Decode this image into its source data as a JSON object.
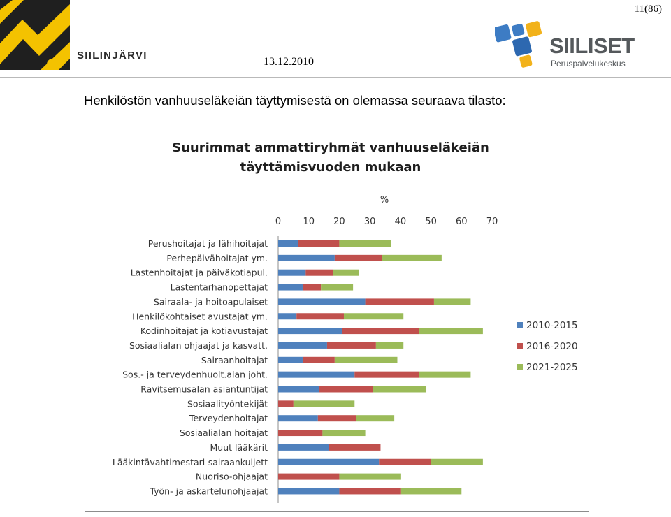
{
  "header": {
    "left_brand": "SIILINJÄRVI",
    "date": "13.12.2010",
    "page_number": "11(86)",
    "right_brand_name": "SIILISET",
    "right_brand_sub": "Peruspalvelukeskus"
  },
  "intro_text": "Henkilöstön vanhuuseläkeiän täyttymisestä on olemassa seuraava tilasto:",
  "colors": {
    "series_2010_2015": "#4f81bd",
    "series_2016_2020": "#c0504d",
    "series_2021_2025": "#9bbb59"
  },
  "chart_data": {
    "type": "bar",
    "orientation": "horizontal",
    "stacked": true,
    "title": "Suurimmat ammattiryhmät vanhuuseläkeiän täyttämisvuoden mukaan",
    "title_lines": [
      "Suurimmat ammattiryhmät vanhuuseläkeiän",
      "täyttämisvuoden mukaan"
    ],
    "xlabel": "%",
    "xlim": [
      0,
      70
    ],
    "xticks": [
      0,
      10,
      20,
      30,
      40,
      50,
      60,
      70
    ],
    "x_axis_position": "top",
    "grid": false,
    "legend_position": "right",
    "categories": [
      "Perushoitajat ja lähihoitajat",
      "Perhepäivähoitajat ym.",
      "Lastenhoitajat ja päiväkotiapul.",
      "Lastentarhanopettajat",
      "Sairaala- ja hoitoapulaiset",
      "Henkilökohtaiset avustajat ym.",
      "Kodinhoitajat ja kotiavustajat",
      "Sosiaalialan ohjaajat ja kasvatt.",
      "Sairaanhoitajat",
      "Sos.- ja terveydenhuolt.alan joht.",
      "Ravitsemusalan asiantuntijat",
      "Sosiaalityöntekijät",
      "Terveydenhoitajat",
      "Sosiaalialan hoitajat",
      "Muut lääkärit",
      "Lääkintävahtimestari-sairaankuljett",
      "Nuoriso-ohjaajat",
      "Työn- ja askartelunohjaajat"
    ],
    "series": [
      {
        "name": "2010-2015",
        "values": [
          6.5,
          18.5,
          9,
          8,
          28.5,
          6,
          21,
          16,
          8,
          25,
          13.5,
          0,
          13,
          0,
          16.5,
          33,
          0,
          20
        ]
      },
      {
        "name": "2016-2020",
        "values": [
          13.5,
          15.5,
          9,
          6,
          22.5,
          15.5,
          25,
          16,
          10.5,
          21,
          17.5,
          5,
          12.5,
          14.5,
          17,
          17,
          20,
          20
        ]
      },
      {
        "name": "2021-2025",
        "values": [
          17,
          19.5,
          8.5,
          10.5,
          12,
          19.5,
          21,
          9,
          20.5,
          17,
          17.5,
          20,
          12.5,
          14,
          0,
          17,
          20,
          20
        ]
      }
    ]
  }
}
